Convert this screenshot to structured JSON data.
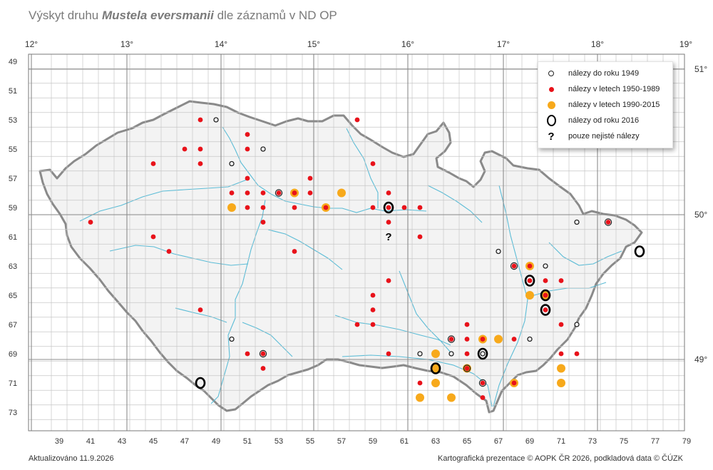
{
  "title": {
    "prefix": "Výskyt druhu ",
    "species": "Mustela eversmanii",
    "suffix": " dle záznamů v ND OP"
  },
  "footer": {
    "updated": "Aktualizováno 11.9.2026",
    "credit": "Kartografická prezentace © AOPK ČR 2026, podkladová data © ČÚZK"
  },
  "colors": {
    "red": "#e8121a",
    "orange": "#f7a91b",
    "ring": "#000000",
    "river": "#5bbcd6",
    "border": "#888888",
    "grid": "#b9b9b9",
    "major_grid": "#8c8c8c"
  },
  "longitude_labels": [
    "12°",
    "13°",
    "14°",
    "15°",
    "16°",
    "17°",
    "18°",
    "19°"
  ],
  "latitude_labels": [
    "51°",
    "50°",
    "49°"
  ],
  "grid_row_labels": [
    "49",
    "51",
    "53",
    "55",
    "57",
    "59",
    "61",
    "63",
    "65",
    "67",
    "69",
    "71",
    "73"
  ],
  "grid_col_labels": [
    "39",
    "41",
    "43",
    "45",
    "47",
    "49",
    "51",
    "53",
    "55",
    "57",
    "59",
    "61",
    "63",
    "65",
    "67",
    "69",
    "71",
    "73",
    "75",
    "77",
    "79"
  ],
  "legend": [
    {
      "symbol": "open-small",
      "label": "nálezy do roku 1949"
    },
    {
      "symbol": "red-dot",
      "label": "nálezy v letech 1950-1989"
    },
    {
      "symbol": "orange-dot",
      "label": "nálezy v letech 1990-2015"
    },
    {
      "symbol": "black-ring",
      "label": "nálezy od roku 2016"
    },
    {
      "symbol": "qmark",
      "label": "pouze nejisté nálezy"
    }
  ],
  "records": [
    {
      "col": 48,
      "row": 53,
      "cat": "red"
    },
    {
      "col": 49,
      "row": 53,
      "cat": "open"
    },
    {
      "col": 58,
      "row": 53,
      "cat": "red"
    },
    {
      "col": 51,
      "row": 54,
      "cat": "red"
    },
    {
      "col": 47,
      "row": 55,
      "cat": "red"
    },
    {
      "col": 48,
      "row": 55,
      "cat": "red"
    },
    {
      "col": 51,
      "row": 55,
      "cat": "red"
    },
    {
      "col": 52,
      "row": 55,
      "cat": "open"
    },
    {
      "col": 45,
      "row": 56,
      "cat": "red"
    },
    {
      "col": 48,
      "row": 56,
      "cat": "red"
    },
    {
      "col": 50,
      "row": 56,
      "cat": "open"
    },
    {
      "col": 59,
      "row": 56,
      "cat": "red"
    },
    {
      "col": 51,
      "row": 57,
      "cat": "red"
    },
    {
      "col": 55,
      "row": 57,
      "cat": "red"
    },
    {
      "col": 50,
      "row": 58,
      "cat": "red"
    },
    {
      "col": 51,
      "row": 58,
      "cat": "red"
    },
    {
      "col": 52,
      "row": 58,
      "cat": "red"
    },
    {
      "col": 53,
      "row": 58,
      "cat": "red",
      "ring": true
    },
    {
      "col": 54,
      "row": 58,
      "cat": "orange"
    },
    {
      "col": 54,
      "row": 58,
      "cat": "red"
    },
    {
      "col": 55,
      "row": 58,
      "cat": "red"
    },
    {
      "col": 57,
      "row": 58,
      "cat": "orange"
    },
    {
      "col": 60,
      "row": 58,
      "cat": "red"
    },
    {
      "col": 50,
      "row": 59,
      "cat": "orange"
    },
    {
      "col": 51,
      "row": 59,
      "cat": "red"
    },
    {
      "col": 52,
      "row": 59,
      "cat": "red"
    },
    {
      "col": 54,
      "row": 59,
      "cat": "red"
    },
    {
      "col": 56,
      "row": 59,
      "cat": "orange"
    },
    {
      "col": 56,
      "row": 59,
      "cat": "red"
    },
    {
      "col": 59,
      "row": 59,
      "cat": "red"
    },
    {
      "col": 60,
      "row": 59,
      "cat": "ringbig"
    },
    {
      "col": 60,
      "row": 59,
      "cat": "red"
    },
    {
      "col": 61,
      "row": 59,
      "cat": "red"
    },
    {
      "col": 62,
      "row": 59,
      "cat": "red"
    },
    {
      "col": 41,
      "row": 60,
      "cat": "red"
    },
    {
      "col": 52,
      "row": 60,
      "cat": "red"
    },
    {
      "col": 60,
      "row": 60,
      "cat": "red"
    },
    {
      "col": 72,
      "row": 60,
      "cat": "open"
    },
    {
      "col": 74,
      "row": 60,
      "cat": "red",
      "ring": true
    },
    {
      "col": 45,
      "row": 61,
      "cat": "red"
    },
    {
      "col": 62,
      "row": 61,
      "cat": "red"
    },
    {
      "col": 46,
      "row": 62,
      "cat": "red"
    },
    {
      "col": 54,
      "row": 62,
      "cat": "red"
    },
    {
      "col": 67,
      "row": 62,
      "cat": "open"
    },
    {
      "col": 76,
      "row": 62,
      "cat": "ringbig"
    },
    {
      "col": 68,
      "row": 63,
      "cat": "red",
      "ring": true
    },
    {
      "col": 69,
      "row": 63,
      "cat": "orange"
    },
    {
      "col": 69,
      "row": 63,
      "cat": "red"
    },
    {
      "col": 70,
      "row": 63,
      "cat": "open"
    },
    {
      "col": 60,
      "row": 64,
      "cat": "red"
    },
    {
      "col": 69,
      "row": 64,
      "cat": "ringbig"
    },
    {
      "col": 69,
      "row": 64,
      "cat": "red"
    },
    {
      "col": 70,
      "row": 64,
      "cat": "red"
    },
    {
      "col": 71,
      "row": 64,
      "cat": "red"
    },
    {
      "col": 59,
      "row": 65,
      "cat": "red"
    },
    {
      "col": 69,
      "row": 65,
      "cat": "orange"
    },
    {
      "col": 70,
      "row": 65,
      "cat": "ringbig"
    },
    {
      "col": 70,
      "row": 65,
      "cat": "orange"
    },
    {
      "col": 70,
      "row": 65,
      "cat": "red"
    },
    {
      "col": 48,
      "row": 66,
      "cat": "red"
    },
    {
      "col": 59,
      "row": 66,
      "cat": "red"
    },
    {
      "col": 70,
      "row": 66,
      "cat": "ringbig"
    },
    {
      "col": 70,
      "row": 66,
      "cat": "red"
    },
    {
      "col": 58,
      "row": 67,
      "cat": "red"
    },
    {
      "col": 59,
      "row": 67,
      "cat": "red"
    },
    {
      "col": 65,
      "row": 67,
      "cat": "red"
    },
    {
      "col": 71,
      "row": 67,
      "cat": "red"
    },
    {
      "col": 72,
      "row": 67,
      "cat": "open"
    },
    {
      "col": 50,
      "row": 68,
      "cat": "open"
    },
    {
      "col": 64,
      "row": 68,
      "cat": "red",
      "ring": true
    },
    {
      "col": 65,
      "row": 68,
      "cat": "red"
    },
    {
      "col": 66,
      "row": 68,
      "cat": "orange"
    },
    {
      "col": 66,
      "row": 68,
      "cat": "red"
    },
    {
      "col": 67,
      "row": 68,
      "cat": "orange"
    },
    {
      "col": 68,
      "row": 68,
      "cat": "red"
    },
    {
      "col": 69,
      "row": 68,
      "cat": "open"
    },
    {
      "col": 51,
      "row": 69,
      "cat": "red"
    },
    {
      "col": 52,
      "row": 69,
      "cat": "red",
      "ring": true
    },
    {
      "col": 60,
      "row": 69,
      "cat": "red"
    },
    {
      "col": 62,
      "row": 69,
      "cat": "open"
    },
    {
      "col": 63,
      "row": 69,
      "cat": "orange"
    },
    {
      "col": 64,
      "row": 69,
      "cat": "open"
    },
    {
      "col": 65,
      "row": 69,
      "cat": "red"
    },
    {
      "col": 66,
      "row": 69,
      "cat": "ringbig"
    },
    {
      "col": 66,
      "row": 69,
      "cat": "open"
    },
    {
      "col": 71,
      "row": 69,
      "cat": "red"
    },
    {
      "col": 72,
      "row": 69,
      "cat": "red"
    },
    {
      "col": 52,
      "row": 70,
      "cat": "red"
    },
    {
      "col": 63,
      "row": 70,
      "cat": "orange"
    },
    {
      "col": 63,
      "row": 70,
      "cat": "ringbig"
    },
    {
      "col": 65,
      "row": 70,
      "cat": "orange"
    },
    {
      "col": 65,
      "row": 70,
      "cat": "red",
      "ring": true
    },
    {
      "col": 71,
      "row": 70,
      "cat": "orange"
    },
    {
      "col": 48,
      "row": 71,
      "cat": "ringbig"
    },
    {
      "col": 62,
      "row": 71,
      "cat": "red"
    },
    {
      "col": 63,
      "row": 71,
      "cat": "orange"
    },
    {
      "col": 66,
      "row": 71,
      "cat": "red",
      "ring": true
    },
    {
      "col": 68,
      "row": 71,
      "cat": "orange"
    },
    {
      "col": 68,
      "row": 71,
      "cat": "red"
    },
    {
      "col": 71,
      "row": 71,
      "cat": "orange"
    },
    {
      "col": 62,
      "row": 72,
      "cat": "orange"
    },
    {
      "col": 64,
      "row": 72,
      "cat": "orange"
    },
    {
      "col": 66,
      "row": 72,
      "cat": "red"
    }
  ],
  "uncertain": [
    {
      "col": 60,
      "row": 61,
      "text": "?"
    }
  ]
}
